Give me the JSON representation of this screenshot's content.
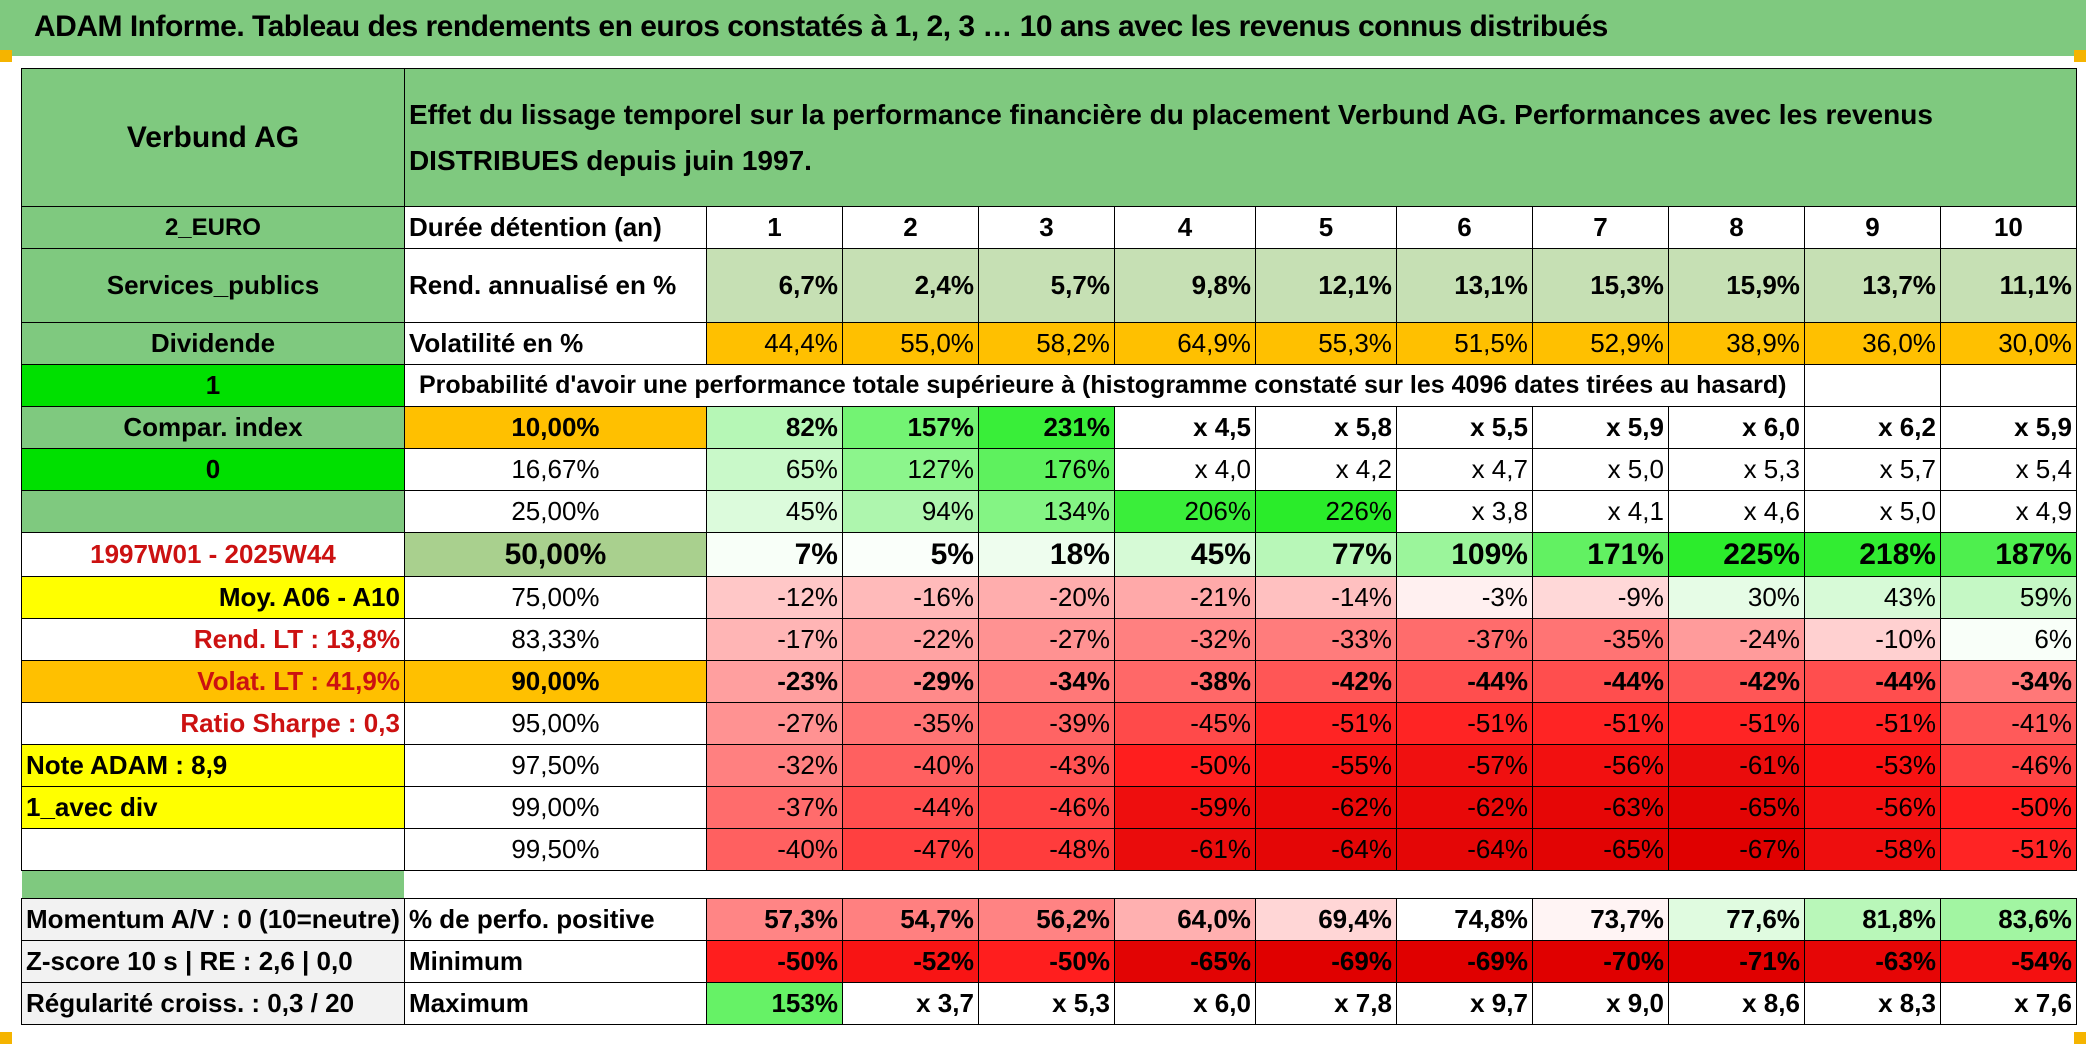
{
  "title": "ADAM Informe. Tableau des rendements en euros constatés à 1, 2, 3 … 10 ans avec les revenus connus distribués",
  "header": {
    "name": "Verbund AG",
    "description": "Effet du lissage temporel sur la performance financière du placement Verbund AG. Performances avec les revenus DISTRIBUES depuis juin 1997."
  },
  "left": {
    "currency": "2_EURO",
    "sector": "Services_publics",
    "income": "Dividende",
    "val1": "1",
    "compar": "Compar. index",
    "val0": "0",
    "period": "1997W01 - 2025W44",
    "moy": "Moy. A06 - A10",
    "rend_lt": "Rend. LT :    13,8%",
    "volat_lt": "Volat. LT :    41,9%",
    "sharpe": "Ratio Sharpe :    0,3",
    "note": "Note ADAM : 8,9",
    "avec_div": "1_avec div",
    "momentum": "Momentum A/V : 0 (10=neutre)",
    "zscore": "Z-score 10 s | RE : 2,6 | 0,0",
    "regularite": "Régularité croiss. : 0,3 / 20"
  },
  "labels": {
    "duree": "Durée détention (an)",
    "rend": "Rend. annualisé en %",
    "volat": "Volatilité en %",
    "proba": "Probabilité d'avoir une performance totale supérieure à (histogramme constaté sur les 4096 dates tirées au hasard)",
    "positive": "% de perfo. positive",
    "minimum": "Minimum",
    "maximum": "Maximum"
  },
  "years": [
    "1",
    "2",
    "3",
    "4",
    "5",
    "6",
    "7",
    "8",
    "9",
    "10"
  ],
  "rend": [
    "6,7%",
    "2,4%",
    "5,7%",
    "9,8%",
    "12,1%",
    "13,1%",
    "15,3%",
    "15,9%",
    "13,7%",
    "11,1%"
  ],
  "volat": [
    "44,4%",
    "55,0%",
    "58,2%",
    "64,9%",
    "55,3%",
    "51,5%",
    "52,9%",
    "38,9%",
    "36,0%",
    "30,0%"
  ],
  "volat_colors": [
    "#ffc000",
    "#ffc000",
    "#ffc000",
    "#ffc000",
    "#ffc000",
    "#ffc000",
    "#ffc000",
    "#ffc000",
    "#ffc000",
    "#ffc000"
  ],
  "quantiles": [
    {
      "label": "10,00%",
      "bg": "#ffc000",
      "bold": true,
      "values": [
        "82%",
        "157%",
        "231%",
        "x 4,5",
        "x 5,8",
        "x 5,5",
        "x 5,9",
        "x 6,0",
        "x 6,2",
        "x 5,9"
      ],
      "colors": [
        "#b6f7b6",
        "#73f373",
        "#39ee39",
        "#ffffff",
        "#ffffff",
        "#ffffff",
        "#ffffff",
        "#ffffff",
        "#ffffff",
        "#ffffff"
      ]
    },
    {
      "label": "16,67%",
      "bg": "#ffffff",
      "bold": false,
      "values": [
        "65%",
        "127%",
        "176%",
        "x 4,0",
        "x 4,2",
        "x 4,7",
        "x 5,0",
        "x 5,3",
        "x 5,7",
        "x 5,4"
      ],
      "colors": [
        "#c9f9c9",
        "#8cf58c",
        "#5ef15e",
        "#ffffff",
        "#ffffff",
        "#ffffff",
        "#ffffff",
        "#ffffff",
        "#ffffff",
        "#ffffff"
      ]
    },
    {
      "label": "25,00%",
      "bg": "#ffffff",
      "bold": false,
      "values": [
        "45%",
        "94%",
        "134%",
        "206%",
        "226%",
        "x 3,8",
        "x 4,1",
        "x 4,6",
        "x 5,0",
        "x 4,9"
      ],
      "colors": [
        "#dcfbdc",
        "#aef6ae",
        "#84f484",
        "#3aee3a",
        "#2aec2a",
        "#ffffff",
        "#ffffff",
        "#ffffff",
        "#ffffff",
        "#ffffff"
      ]
    },
    {
      "label": "50,00%",
      "bg": "#a9d08e",
      "bold": true,
      "big": true,
      "values": [
        "7%",
        "5%",
        "18%",
        "45%",
        "77%",
        "109%",
        "171%",
        "225%",
        "218%",
        "187%"
      ],
      "colors": [
        "#f8fff8",
        "#fafffa",
        "#eefdee",
        "#d6fad6",
        "#b8f7b8",
        "#9bf59b",
        "#62f162",
        "#2cec2c",
        "#32ed32",
        "#4eef4e"
      ]
    },
    {
      "label": "75,00%",
      "bg": "#ffffff",
      "bold": false,
      "values": [
        "-12%",
        "-16%",
        "-20%",
        "-21%",
        "-14%",
        "-3%",
        "-9%",
        "30%",
        "43%",
        "59%"
      ],
      "colors": [
        "#ffc7c7",
        "#ffbaba",
        "#ffadad",
        "#ffa9a9",
        "#ffc0c0",
        "#fff0f0",
        "#ffd8d8",
        "#e6fce6",
        "#d7fad7",
        "#c5f8c5"
      ]
    },
    {
      "label": "83,33%",
      "bg": "#ffffff",
      "bold": false,
      "values": [
        "-17%",
        "-22%",
        "-27%",
        "-32%",
        "-33%",
        "-37%",
        "-35%",
        "-24%",
        "-10%",
        "6%"
      ],
      "colors": [
        "#ffb5b5",
        "#ffa3a3",
        "#ff9292",
        "#ff8080",
        "#ff7c7c",
        "#ff6c6c",
        "#ff7474",
        "#ff9b9b",
        "#ffd0d0",
        "#f9fff9"
      ]
    },
    {
      "label": "90,00%",
      "bg": "#ffc000",
      "bold": true,
      "values": [
        "-23%",
        "-29%",
        "-34%",
        "-38%",
        "-42%",
        "-44%",
        "-44%",
        "-42%",
        "-44%",
        "-34%"
      ],
      "colors": [
        "#ff9f9f",
        "#ff8a8a",
        "#ff7878",
        "#ff6868",
        "#ff5656",
        "#ff4e4e",
        "#ff4e4e",
        "#ff5656",
        "#ff4e4e",
        "#ff7878"
      ]
    },
    {
      "label": "95,00%",
      "bg": "#ffffff",
      "bold": false,
      "values": [
        "-27%",
        "-35%",
        "-39%",
        "-45%",
        "-51%",
        "-51%",
        "-51%",
        "-51%",
        "-51%",
        "-41%"
      ],
      "colors": [
        "#ff9292",
        "#ff7474",
        "#ff6464",
        "#ff4a4a",
        "#ff2424",
        "#ff2424",
        "#ff2424",
        "#ff2424",
        "#ff2424",
        "#ff5a5a"
      ]
    },
    {
      "label": "97,50%",
      "bg": "#ffffff",
      "bold": false,
      "values": [
        "-32%",
        "-40%",
        "-43%",
        "-50%",
        "-55%",
        "-57%",
        "-56%",
        "-61%",
        "-53%",
        "-46%"
      ],
      "colors": [
        "#ff8080",
        "#ff6060",
        "#ff5252",
        "#ff1e1e",
        "#f41010",
        "#f01010",
        "#f21010",
        "#ea0c0c",
        "#f81212",
        "#ff4444"
      ]
    },
    {
      "label": "99,00%",
      "bg": "#ffffff",
      "bold": false,
      "values": [
        "-37%",
        "-44%",
        "-46%",
        "-59%",
        "-62%",
        "-62%",
        "-63%",
        "-65%",
        "-56%",
        "-50%"
      ],
      "colors": [
        "#ff6c6c",
        "#ff4e4e",
        "#ff4444",
        "#ee0e0e",
        "#e80808",
        "#e80808",
        "#e60606",
        "#e20404",
        "#f21010",
        "#ff1e1e"
      ]
    },
    {
      "label": "99,50%",
      "bg": "#ffffff",
      "bold": false,
      "values": [
        "-40%",
        "-47%",
        "-48%",
        "-61%",
        "-64%",
        "-64%",
        "-65%",
        "-67%",
        "-58%",
        "-51%"
      ],
      "colors": [
        "#ff6060",
        "#ff4040",
        "#ff3c3c",
        "#ea0c0c",
        "#e40606",
        "#e40606",
        "#e20404",
        "#e00000",
        "#ee0e0e",
        "#ff2424"
      ]
    }
  ],
  "positive": [
    "57,3%",
    "54,7%",
    "56,2%",
    "64,0%",
    "69,4%",
    "74,8%",
    "73,7%",
    "77,6%",
    "81,8%",
    "83,6%"
  ],
  "positive_colors": [
    "#ff8585",
    "#ff8080",
    "#ff8383",
    "#ffb0b0",
    "#ffd6d6",
    "#ffffff",
    "#fff4f4",
    "#e0fbe0",
    "#b9f7b9",
    "#a2f5a2"
  ],
  "minimum": [
    "-50%",
    "-52%",
    "-50%",
    "-65%",
    "-69%",
    "-69%",
    "-70%",
    "-71%",
    "-63%",
    "-54%"
  ],
  "minimum_colors": [
    "#ff1e1e",
    "#f81414",
    "#ff1e1e",
    "#e20404",
    "#e00000",
    "#e00000",
    "#e00000",
    "#e00000",
    "#e60606",
    "#f41010"
  ],
  "maximum": [
    "153%",
    "x 3,7",
    "x 5,3",
    "x 6,0",
    "x 7,8",
    "x 9,7",
    "x 9,0",
    "x 8,6",
    "x 8,3",
    "x 7,6"
  ],
  "maximum_colors": [
    "#66f266",
    "#ffffff",
    "#ffffff",
    "#ffffff",
    "#ffffff",
    "#ffffff",
    "#ffffff",
    "#ffffff",
    "#ffffff",
    "#ffffff"
  ]
}
